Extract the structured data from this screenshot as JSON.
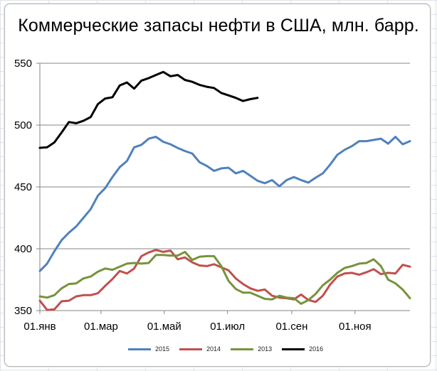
{
  "window": {
    "type": "spreadsheet-embedded-chart"
  },
  "chart_data": {
    "type": "line",
    "title": "Коммерческие запасы нефти в США, млн. барр.",
    "xlabel": "",
    "ylabel": "",
    "ylim": [
      350,
      550
    ],
    "yticks": [
      350,
      400,
      450,
      500,
      550
    ],
    "ytick_labels": [
      "350",
      "400",
      "450",
      "500",
      "550"
    ],
    "xtick_labels": [
      "01.янв",
      "01.мар",
      "01.май",
      "01.июл",
      "01.сен",
      "01.ноя"
    ],
    "x_unit": "week of year (1–52)",
    "grid": {
      "horizontal": true,
      "vertical": false
    },
    "legend_position": "bottom",
    "series": [
      {
        "name": "2015",
        "color": "#4f81bd",
        "values": [
          382,
          388,
          398,
          407,
          413,
          418,
          425,
          432,
          443,
          449,
          458,
          466,
          471,
          482,
          484,
          489,
          490.5,
          486.5,
          484.5,
          481.5,
          479,
          477,
          470,
          467,
          463,
          465,
          465.5,
          461,
          463,
          459,
          455,
          453,
          455.5,
          450.5,
          455.5,
          458,
          455.5,
          453.5,
          457.5,
          461,
          468,
          476,
          480,
          483,
          487,
          487,
          488,
          489,
          485,
          490.5,
          484.5,
          487
        ]
      },
      {
        "name": "2014",
        "color": "#c0504d",
        "values": [
          358,
          350.5,
          351,
          357.5,
          358,
          361.5,
          362.5,
          362.5,
          364,
          370,
          375.5,
          382,
          380,
          384,
          394,
          397,
          399,
          397.5,
          398.5,
          391.5,
          393,
          389,
          386.5,
          386,
          387.5,
          385,
          382.5,
          376,
          371.5,
          368,
          366,
          367,
          362,
          360.5,
          360,
          359,
          363,
          358.5,
          357,
          362,
          371,
          377.5,
          380,
          380.5,
          379,
          381,
          383.5,
          379.5,
          380.5,
          380,
          387,
          385.5
        ]
      },
      {
        "name": "2013",
        "color": "#77933c",
        "values": [
          361.5,
          360.5,
          362.5,
          368,
          371.5,
          372,
          376,
          377.5,
          381.5,
          384,
          383,
          385.5,
          388,
          388.5,
          388,
          388.5,
          395,
          395,
          394.5,
          394.5,
          397.5,
          391,
          393.5,
          394,
          394,
          386,
          374,
          367.5,
          364.5,
          364.5,
          362,
          359.5,
          359,
          362,
          360.5,
          360,
          355.5,
          358.5,
          363.5,
          370.5,
          375,
          380.5,
          384.5,
          386,
          388,
          388.5,
          391.5,
          386,
          375,
          372,
          367,
          360
        ]
      },
      {
        "name": "2016",
        "color": "#000000",
        "values": [
          481.6,
          482,
          486,
          494,
          502.5,
          501.5,
          503.5,
          506.5,
          517,
          521.5,
          522.5,
          532,
          534.5,
          529.5,
          536,
          538,
          540.5,
          543,
          539.5,
          540.5,
          536.5,
          535,
          532.5,
          531,
          530,
          526,
          524,
          522,
          519.5,
          521,
          522
        ]
      }
    ]
  },
  "legend": {
    "items": [
      {
        "label": "2015",
        "color": "#4f81bd"
      },
      {
        "label": "2014",
        "color": "#c0504d"
      },
      {
        "label": "2013",
        "color": "#77933c"
      },
      {
        "label": "2016",
        "color": "#000000"
      }
    ]
  },
  "style": {
    "gridline_color": "#868686",
    "axis_color": "#868686"
  }
}
